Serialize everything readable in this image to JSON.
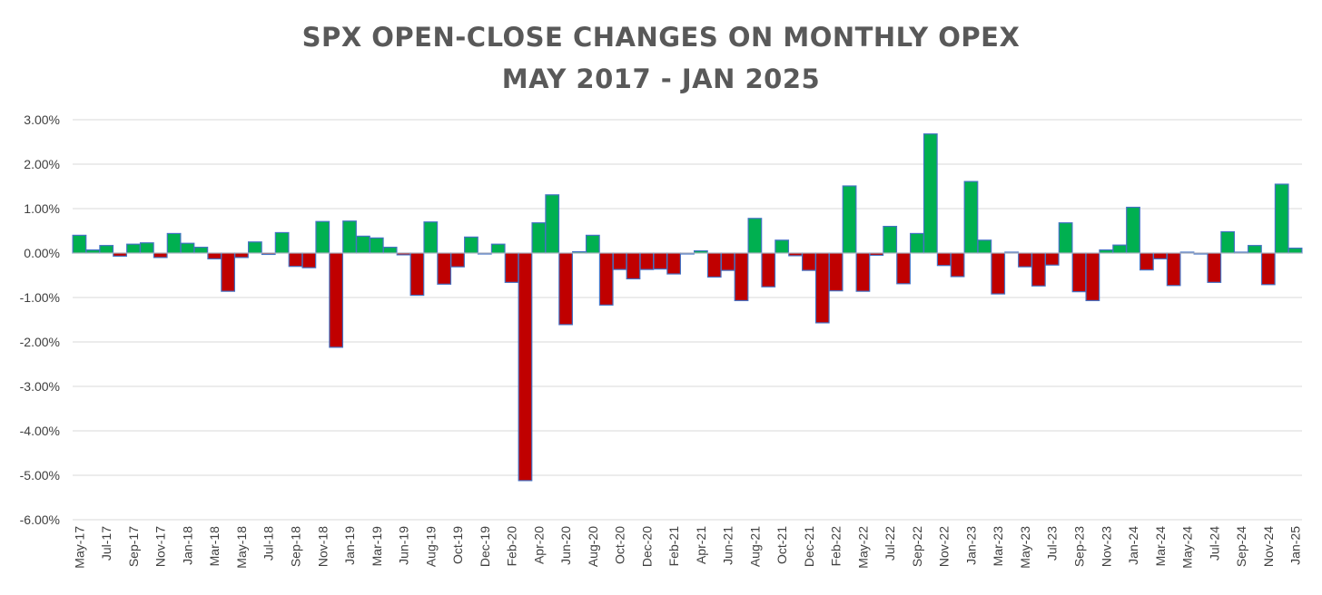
{
  "chart_data": {
    "type": "bar",
    "title": "SPX OPEN-CLOSE CHANGES ON MONTHLY OPEX",
    "subtitle": "MAY 2017 - JAN 2025",
    "xlabel": "",
    "ylabel": "",
    "ylim": [
      -6,
      3
    ],
    "yticks": [
      3,
      2,
      1,
      0,
      -1,
      -2,
      -3,
      -4,
      -5,
      -6
    ],
    "ytick_labels": [
      "3.00%",
      "2.00%",
      "1.00%",
      "0.00%",
      "-1.00%",
      "-2.00%",
      "-3.00%",
      "-4.00%",
      "-5.00%",
      "-6.00%"
    ],
    "value_unit": "%",
    "grid": true,
    "positive_color": "#00B050",
    "negative_color": "#C00000",
    "bar_edge_color": "#4472C4",
    "categories": [
      "May-17",
      "Jun-17",
      "Jul-17",
      "Aug-17",
      "Sep-17",
      "Oct-17",
      "Nov-17",
      "Dec-17",
      "Jan-18",
      "Feb-18",
      "Mar-18",
      "Apr-18",
      "May-18",
      "Jun-18",
      "Jul-18",
      "Aug-18",
      "Sep-18",
      "Oct-18",
      "Nov-18",
      "Dec-18",
      "Jan-19",
      "Feb-19",
      "Mar-19",
      "Apr-19",
      "Jun-19",
      "Jul-19",
      "Aug-19",
      "Sep-19",
      "Oct-19",
      "Nov-19",
      "Dec-19",
      "Jan-20",
      "Feb-20",
      "Mar-20",
      "Apr-20",
      "May-20",
      "Jun-20",
      "Jul-20",
      "Aug-20",
      "Sep-20",
      "Oct-20",
      "Nov-20",
      "Dec-20",
      "Jan-21",
      "Feb-21",
      "Mar-21",
      "Apr-21",
      "May-21",
      "Jun-21",
      "Jul-21",
      "Aug-21",
      "Sep-21",
      "Oct-21",
      "Nov-21",
      "Dec-21",
      "Jan-22",
      "Feb-22",
      "Mar-22",
      "May-22",
      "Jun-22",
      "Jul-22",
      "Aug-22",
      "Sep-22",
      "Oct-22",
      "Nov-22",
      "Dec-22",
      "Jan-23",
      "Feb-23",
      "Mar-23",
      "Apr-23",
      "May-23",
      "Jun-23",
      "Jul-23",
      "Aug-23",
      "Sep-23",
      "Oct-23",
      "Nov-23",
      "Dec-23",
      "Jan-24",
      "Feb-24",
      "Mar-24",
      "Apr-24",
      "May-24",
      "Jun-24",
      "Jul-24",
      "Aug-24",
      "Sep-24",
      "Oct-24",
      "Nov-24",
      "Dec-24",
      "Jan-25"
    ],
    "xtick_labels": [
      "May-17",
      "Jul-17",
      "Sep-17",
      "Nov-17",
      "Jan-18",
      "Mar-18",
      "May-18",
      "Jul-18",
      "Sep-18",
      "Nov-18",
      "Jan-19",
      "Mar-19",
      "Jun-19",
      "Aug-19",
      "Oct-19",
      "Dec-19",
      "Feb-20",
      "Apr-20",
      "Jun-20",
      "Aug-20",
      "Oct-20",
      "Dec-20",
      "Feb-21",
      "Apr-21",
      "Jun-21",
      "Aug-21",
      "Oct-21",
      "Dec-21",
      "Feb-22",
      "May-22",
      "Jul-22",
      "Sep-22",
      "Nov-22",
      "Jan-23",
      "Mar-23",
      "May-23",
      "Jul-23",
      "Sep-23",
      "Nov-23",
      "Jan-24",
      "Mar-24",
      "May-24",
      "Jul-24",
      "Sep-24",
      "Nov-24",
      "Jan-25"
    ],
    "values": [
      0.4,
      0.07,
      0.17,
      -0.07,
      0.2,
      0.23,
      -0.1,
      0.44,
      0.22,
      0.13,
      -0.13,
      -0.86,
      -0.1,
      0.25,
      -0.03,
      0.46,
      -0.3,
      -0.33,
      0.71,
      -2.12,
      0.72,
      0.38,
      0.34,
      0.13,
      -0.04,
      -0.95,
      0.7,
      -0.7,
      -0.31,
      0.36,
      -0.02,
      0.2,
      -0.66,
      -5.12,
      0.68,
      1.31,
      -1.61,
      0.03,
      0.4,
      -1.17,
      -0.37,
      -0.58,
      -0.37,
      -0.36,
      -0.47,
      -0.02,
      0.05,
      -0.54,
      -0.39,
      -1.07,
      0.78,
      -0.76,
      0.29,
      -0.06,
      -0.39,
      -1.57,
      -0.85,
      1.51,
      -0.86,
      -0.05,
      0.6,
      -0.69,
      0.44,
      2.68,
      -0.28,
      -0.53,
      1.61,
      0.29,
      -0.92,
      0.02,
      -0.31,
      -0.74,
      -0.27,
      0.68,
      -0.87,
      -1.07,
      0.07,
      0.18,
      1.03,
      -0.38,
      -0.13,
      -0.73,
      0.02,
      -0.02,
      -0.66,
      0.48,
      0.02,
      0.17,
      -0.71,
      1.55,
      0.11
    ]
  }
}
